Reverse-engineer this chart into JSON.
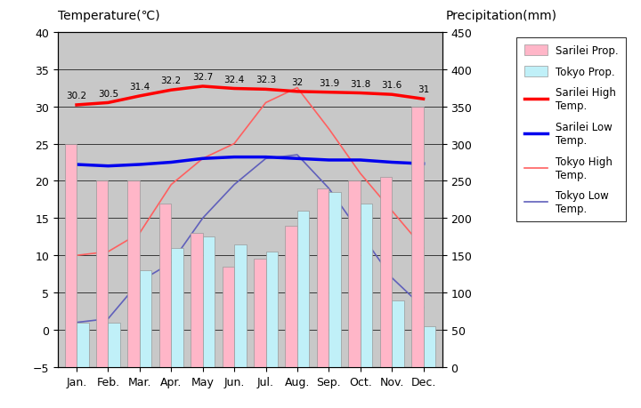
{
  "months": [
    "Jan.",
    "Feb.",
    "Mar.",
    "Apr.",
    "May",
    "Jun.",
    "Jul.",
    "Aug.",
    "Sep.",
    "Oct.",
    "Nov.",
    "Dec."
  ],
  "sarilei_precip": [
    300,
    250,
    250,
    220,
    180,
    135,
    145,
    190,
    240,
    250,
    255,
    350
  ],
  "tokyo_precip": [
    60,
    60,
    130,
    160,
    175,
    165,
    155,
    210,
    235,
    220,
    90,
    55
  ],
  "sarilei_high": [
    30.2,
    30.5,
    31.4,
    32.2,
    32.7,
    32.4,
    32.3,
    32.0,
    31.9,
    31.8,
    31.6,
    31.0
  ],
  "sarilei_low": [
    22.2,
    22.0,
    22.2,
    22.5,
    23.0,
    23.2,
    23.2,
    23.0,
    22.8,
    22.8,
    22.5,
    22.3
  ],
  "tokyo_high": [
    10.0,
    10.5,
    13.0,
    19.5,
    23.0,
    25.0,
    30.5,
    32.5,
    27.0,
    21.0,
    16.0,
    11.0
  ],
  "tokyo_low": [
    1.0,
    1.5,
    6.5,
    9.0,
    15.0,
    19.5,
    23.0,
    23.5,
    19.0,
    13.0,
    7.0,
    3.0
  ],
  "sarilei_high_labels": [
    "30.2",
    "30.5",
    "31.4",
    "32.2",
    "32.7",
    "32.4",
    "32.3",
    "32",
    "31.9",
    "31.8",
    "31.6",
    "31"
  ],
  "temp_ylim": [
    -5,
    40
  ],
  "precip_ylim": [
    0,
    450
  ],
  "sarilei_bar_color": "#FFB6C8",
  "tokyo_bar_color": "#C0F0F8",
  "sarilei_high_color": "#FF0000",
  "sarilei_low_color": "#0000EE",
  "tokyo_high_color": "#FF6060",
  "tokyo_low_color": "#6060BB",
  "background_color": "#C8C8C8",
  "top_band_color": "#B8B8B8",
  "title_left": "Temperature(℃)",
  "title_right": "Precipitation(mm)",
  "temp_yticks": [
    -5,
    0,
    5,
    10,
    15,
    20,
    25,
    30,
    35,
    40
  ],
  "precip_yticks": [
    0,
    50,
    100,
    150,
    200,
    250,
    300,
    350,
    400,
    450
  ]
}
